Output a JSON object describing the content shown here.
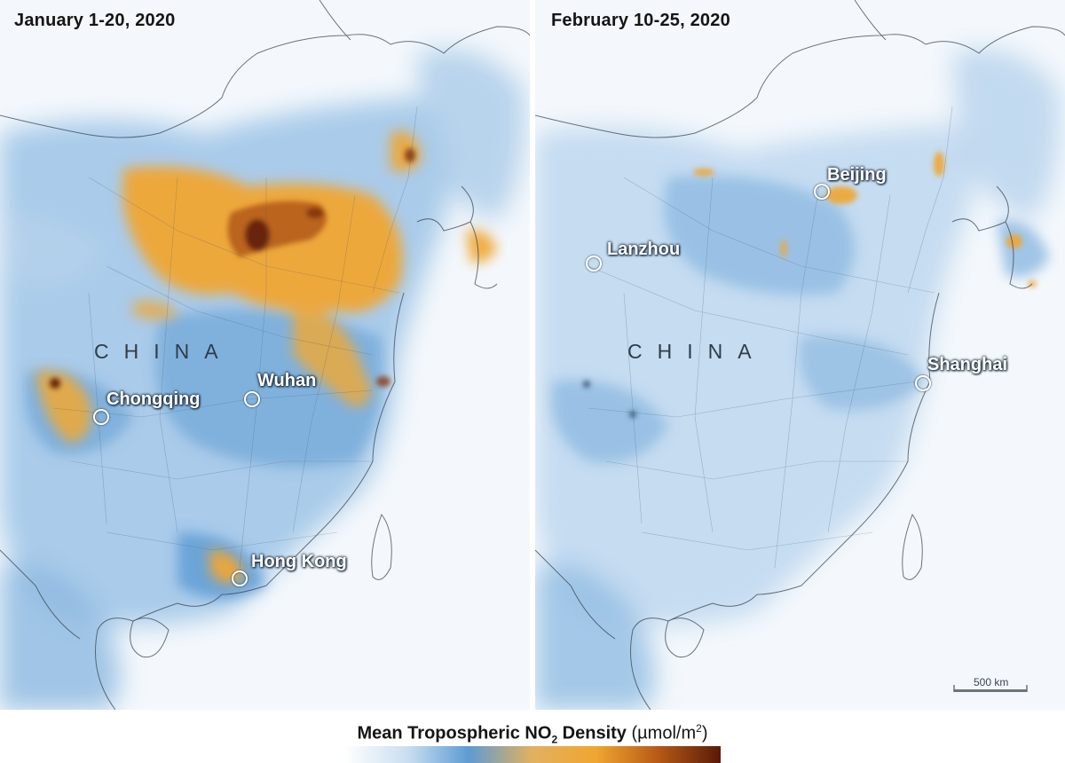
{
  "panels": [
    {
      "title": "January 1-20, 2020",
      "country_label": "CHINA",
      "cities": [
        "Chongqing",
        "Wuhan",
        "Hong Kong"
      ]
    },
    {
      "title": "February 10-25, 2020",
      "country_label": "CHINA",
      "cities": [
        "Beijing",
        "Lanzhou",
        "Shanghai"
      ]
    }
  ],
  "scale": {
    "label": "500 km"
  },
  "legend": {
    "title_main": "Mean Tropospheric NO",
    "title_sub": "2",
    "title_after": " Density",
    "units_before": " (µmol/m",
    "units_sup": "2",
    "units_after": ")",
    "colors": [
      "#ffffff",
      "#c9def0",
      "#5d9bd3",
      "#e2b15f",
      "#f0a531",
      "#b85b16",
      "#5a1a07"
    ]
  }
}
